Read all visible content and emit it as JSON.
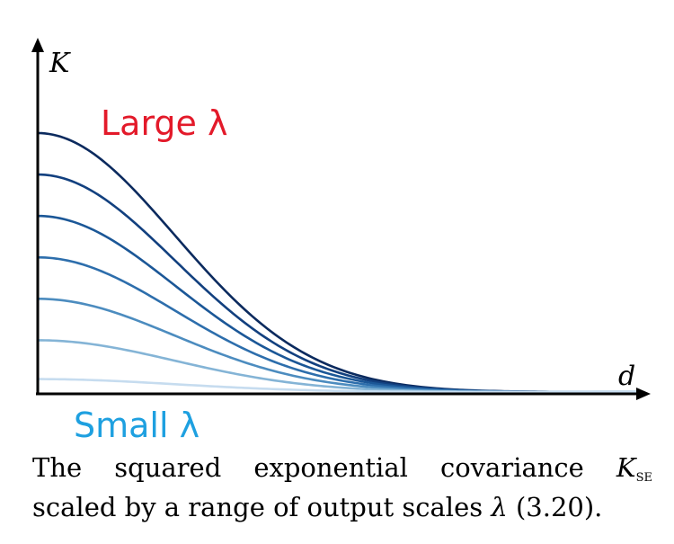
{
  "chart_data": {
    "type": "line",
    "xlabel": "d",
    "ylabel": "K",
    "annotations": {
      "top": "Large λ",
      "bottom": "Small λ"
    },
    "annotation_colors": {
      "top": "#e31a2a",
      "bottom": "#1ea0e0"
    },
    "x_range": [
      0,
      2.2
    ],
    "y_range": [
      0,
      1.0
    ],
    "series": [
      {
        "amplitude": 1.0,
        "color": "#0b2a5e"
      },
      {
        "amplitude": 0.84,
        "color": "#12407f"
      },
      {
        "amplitude": 0.68,
        "color": "#1b5797"
      },
      {
        "amplitude": 0.52,
        "color": "#2d6eac"
      },
      {
        "amplitude": 0.36,
        "color": "#4c8cbf"
      },
      {
        "amplitude": 0.2,
        "color": "#84b4d6"
      },
      {
        "amplitude": 0.05,
        "color": "#c6dcef"
      }
    ]
  },
  "caption": {
    "line1_prefix": "The squared exponential covariance",
    "symbol": "K",
    "subscript": "se",
    "line2_prefix": "scaled by a range of output scales",
    "lambda": "λ",
    "ref": "(3.20)."
  }
}
